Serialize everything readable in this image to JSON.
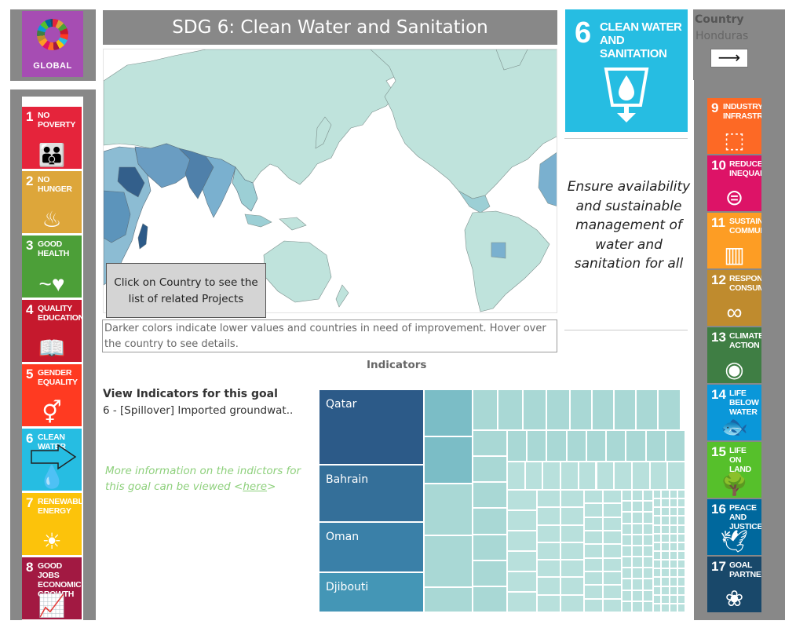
{
  "global": {
    "label": "GLOBAL"
  },
  "left_goals": [
    {
      "num": "1",
      "title": "No Poverty",
      "color": "#e5243b",
      "icon": "family-icon",
      "glyph": "👪"
    },
    {
      "num": "2",
      "title": "No Hunger",
      "color": "#dda63a",
      "icon": "bowl-icon",
      "glyph": "♨"
    },
    {
      "num": "3",
      "title": "Good Health",
      "color": "#4c9f38",
      "icon": "heartbeat-icon",
      "glyph": "~♥"
    },
    {
      "num": "4",
      "title": "Quality Education",
      "color": "#c5192d",
      "icon": "book-icon",
      "glyph": "📖"
    },
    {
      "num": "5",
      "title": "Gender Equality",
      "color": "#ff3a21",
      "icon": "gender-icon",
      "glyph": "⚥"
    },
    {
      "num": "6",
      "title": "Clean Water",
      "color": "#26bde2",
      "icon": "water-icon",
      "glyph": "💧"
    },
    {
      "num": "7",
      "title": "Renewable Energy",
      "color": "#fcc30b",
      "icon": "sun-icon",
      "glyph": "☀"
    },
    {
      "num": "8",
      "title": "Good Jobs Economic Growth",
      "color": "#a21942",
      "icon": "growth-chart-icon",
      "glyph": "📈"
    }
  ],
  "right_goals": [
    {
      "num": "9",
      "title": "Industry, Infrastructure",
      "color": "#fd6925",
      "icon": "cubes-icon",
      "glyph": "⬚"
    },
    {
      "num": "10",
      "title": "Reduced Inequalities",
      "color": "#dd1367",
      "icon": "equals-icon",
      "glyph": "⊜"
    },
    {
      "num": "11",
      "title": "Sustainable Communities",
      "color": "#fd9d24",
      "icon": "buildings-icon",
      "glyph": "▥"
    },
    {
      "num": "12",
      "title": "Responsible Consumption",
      "color": "#bf8b2e",
      "icon": "infinity-icon",
      "glyph": "∞"
    },
    {
      "num": "13",
      "title": "Climate Action",
      "color": "#3f7e44",
      "icon": "eye-icon",
      "glyph": "◉"
    },
    {
      "num": "14",
      "title": "Life Below Water",
      "color": "#0a97d9",
      "icon": "fish-icon",
      "glyph": "🐟"
    },
    {
      "num": "15",
      "title": "Life On Land",
      "color": "#56c02b",
      "icon": "tree-icon",
      "glyph": "🌳"
    },
    {
      "num": "16",
      "title": "Peace And Justice",
      "color": "#00689d",
      "icon": "dove-icon",
      "glyph": "🕊"
    },
    {
      "num": "17",
      "title": "Goal Partners",
      "color": "#19486a",
      "icon": "rings-icon",
      "glyph": "❀"
    }
  ],
  "header": {
    "title": "SDG  6: Clean Water and Sanitation"
  },
  "goal_tile": {
    "num": "6",
    "title": "CLEAN WATER AND SANITATION",
    "color": "#26bde2",
    "icon": "water-glass-icon"
  },
  "goal_description": "Ensure availability and sustainable management of water and sanitation for all",
  "country": {
    "label": "Country",
    "value": "Honduras",
    "next_icon": "arrow-right-icon",
    "next_glyph": "⟶"
  },
  "map": {
    "click_hint": "Click on Country to see the list of related Projects",
    "note": "Darker colors indicate lower values and countries in need of improvement.  Hover over the country to see details."
  },
  "indicators": {
    "section_label": "Indicators",
    "view_title": "View Indicators for this goal",
    "selected": "6 - [Spillover] Imported groundwat..",
    "more_info_prefix": "More information on the indictors for this goal can be viewed <",
    "more_info_link": "here",
    "more_info_suffix": ">"
  },
  "treemap": {
    "labeled": [
      {
        "label": "Qatar",
        "color": "#2c5a88"
      },
      {
        "label": "Bahrain",
        "color": "#346f99"
      },
      {
        "label": "Oman",
        "color": "#3a80a8"
      },
      {
        "label": "Djibouti",
        "color": "#4496b6"
      }
    ],
    "colors": {
      "mid": "#7bbdc6",
      "light": "#a9d8d5",
      "lighter": "#b8e0dc"
    }
  }
}
